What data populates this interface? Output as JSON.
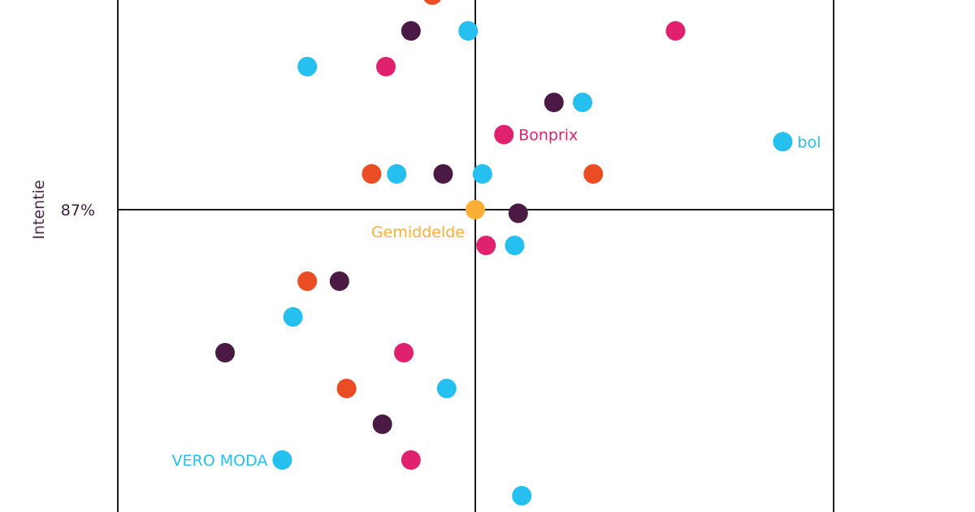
{
  "chart_data": {
    "type": "scatter",
    "ylabel": "Intentie",
    "y_reference": {
      "value": 87,
      "label": "87%"
    },
    "colors": {
      "cyan": "#25c0ef",
      "plum": "#4a1a45",
      "magenta": "#e0226e",
      "orange": "#ea4c24",
      "average": "#f9b035"
    },
    "points": [
      {
        "x": -0.12,
        "y": 93.0,
        "c": "orange"
      },
      {
        "x": -0.18,
        "y": 92.5,
        "c": "plum"
      },
      {
        "x": -0.02,
        "y": 92.5,
        "c": "cyan"
      },
      {
        "x": 0.56,
        "y": 92.5,
        "c": "magenta"
      },
      {
        "x": -0.47,
        "y": 92.0,
        "c": "cyan"
      },
      {
        "x": -0.25,
        "y": 92.0,
        "c": "magenta"
      },
      {
        "x": 0.22,
        "y": 91.5,
        "c": "plum"
      },
      {
        "x": 0.3,
        "y": 91.5,
        "c": "cyan"
      },
      {
        "x": 0.08,
        "y": 91.05,
        "c": "magenta",
        "label": "Bonprix"
      },
      {
        "x": 0.86,
        "y": 90.95,
        "c": "cyan",
        "label": "bol"
      },
      {
        "x": -0.29,
        "y": 90.5,
        "c": "orange"
      },
      {
        "x": -0.22,
        "y": 90.5,
        "c": "cyan"
      },
      {
        "x": -0.09,
        "y": 90.5,
        "c": "plum"
      },
      {
        "x": 0.02,
        "y": 90.5,
        "c": "cyan"
      },
      {
        "x": 0.33,
        "y": 90.5,
        "c": "orange"
      },
      {
        "x": 0.0,
        "y": 90.0,
        "c": "average",
        "label": "Gemiddelde",
        "is_average": true
      },
      {
        "x": 0.12,
        "y": 89.95,
        "c": "plum"
      },
      {
        "x": 0.03,
        "y": 89.5,
        "c": "magenta"
      },
      {
        "x": 0.11,
        "y": 89.5,
        "c": "cyan"
      },
      {
        "x": -0.47,
        "y": 89.0,
        "c": "orange"
      },
      {
        "x": -0.38,
        "y": 89.0,
        "c": "plum"
      },
      {
        "x": -0.51,
        "y": 88.5,
        "c": "cyan"
      },
      {
        "x": -0.7,
        "y": 88.0,
        "c": "plum"
      },
      {
        "x": -0.2,
        "y": 88.0,
        "c": "magenta"
      },
      {
        "x": -0.36,
        "y": 87.5,
        "c": "orange"
      },
      {
        "x": -0.08,
        "y": 87.5,
        "c": "cyan"
      },
      {
        "x": -0.26,
        "y": 87.0,
        "c": "plum"
      },
      {
        "x": -0.54,
        "y": 86.5,
        "c": "cyan",
        "label": "VERO MODA"
      },
      {
        "x": -0.18,
        "y": 86.5,
        "c": "magenta"
      },
      {
        "x": 0.13,
        "y": 86.0,
        "c": "cyan"
      }
    ]
  }
}
